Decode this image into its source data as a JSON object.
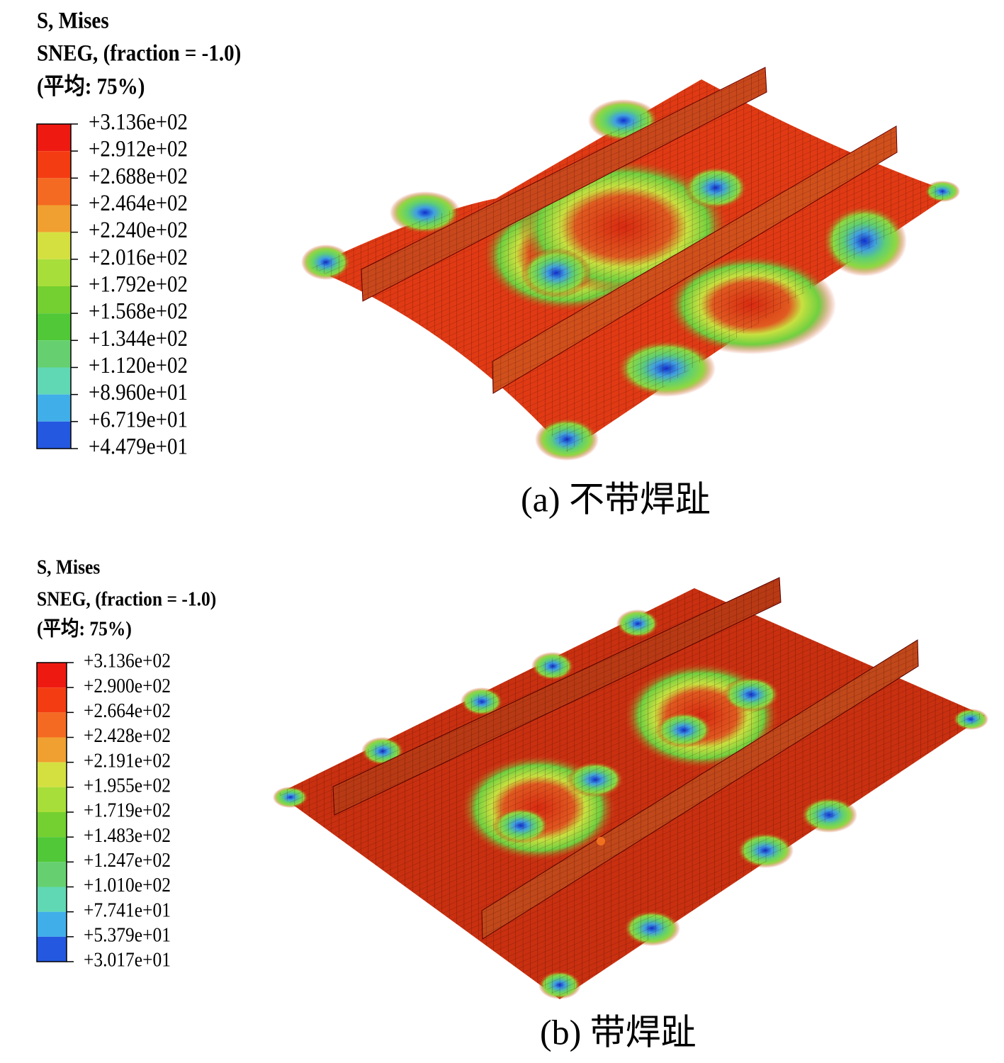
{
  "panels": [
    {
      "legend": {
        "title_lines": [
          "S, Mises",
          "SNEG, (fraction = -1.0)",
          "(平均: 75%)"
        ],
        "ticks": [
          "+3.136e+02",
          "+2.912e+02",
          "+2.688e+02",
          "+2.464e+02",
          "+2.240e+02",
          "+2.016e+02",
          "+1.792e+02",
          "+1.568e+02",
          "+1.344e+02",
          "+1.120e+02",
          "+8.960e+01",
          "+6.719e+01",
          "+4.479e+01"
        ]
      },
      "caption": "(a) 不带焊趾"
    },
    {
      "legend": {
        "title_lines": [
          "S, Mises",
          "SNEG, (fraction = -1.0)",
          "(平均: 75%)"
        ],
        "ticks": [
          "+3.136e+02",
          "+2.900e+02",
          "+2.664e+02",
          "+2.428e+02",
          "+2.191e+02",
          "+1.955e+02",
          "+1.719e+02",
          "+1.483e+02",
          "+1.247e+02",
          "+1.010e+02",
          "+7.741e+01",
          "+5.379e+01",
          "+3.017e+01"
        ]
      },
      "caption": "(b) 带焊趾"
    }
  ]
}
